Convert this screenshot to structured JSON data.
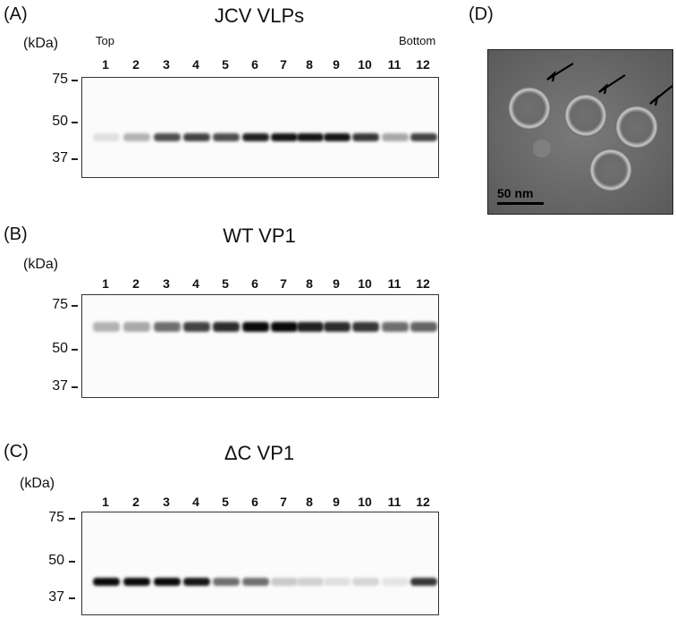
{
  "panels": {
    "A": {
      "letter": "(A)",
      "title": "JCV VLPs",
      "unit": "(kDa)",
      "top_label": "Top",
      "bottom_label": "Bottom",
      "lanes": [
        "1",
        "2",
        "3",
        "4",
        "5",
        "6",
        "7",
        "8",
        "9",
        "10",
        "11",
        "12"
      ],
      "markers": [
        "75",
        "50",
        "37"
      ],
      "band_intensity": [
        0.05,
        0.25,
        0.7,
        0.75,
        0.7,
        0.9,
        0.95,
        0.95,
        0.95,
        0.8,
        0.3,
        0.75
      ]
    },
    "B": {
      "letter": "(B)",
      "title": "WT VP1",
      "unit": "(kDa)",
      "lanes": [
        "1",
        "2",
        "3",
        "4",
        "5",
        "6",
        "7",
        "8",
        "9",
        "10",
        "11",
        "12"
      ],
      "markers": [
        "75",
        "50",
        "37"
      ],
      "band_intensity": [
        0.25,
        0.3,
        0.55,
        0.75,
        0.85,
        1.0,
        1.0,
        0.9,
        0.85,
        0.8,
        0.55,
        0.6
      ]
    },
    "C": {
      "letter": "(C)",
      "title": "ΔC VP1",
      "unit": "(kDa)",
      "lanes": [
        "1",
        "2",
        "3",
        "4",
        "5",
        "6",
        "7",
        "8",
        "9",
        "10",
        "11",
        "12"
      ],
      "markers": [
        "75",
        "50",
        "37"
      ],
      "band_intensity": [
        1.0,
        1.0,
        1.0,
        0.95,
        0.55,
        0.55,
        0.15,
        0.12,
        0.05,
        0.1,
        0.03,
        0.8
      ]
    },
    "D": {
      "letter": "(D)",
      "scale_bar": "50 nm"
    }
  }
}
